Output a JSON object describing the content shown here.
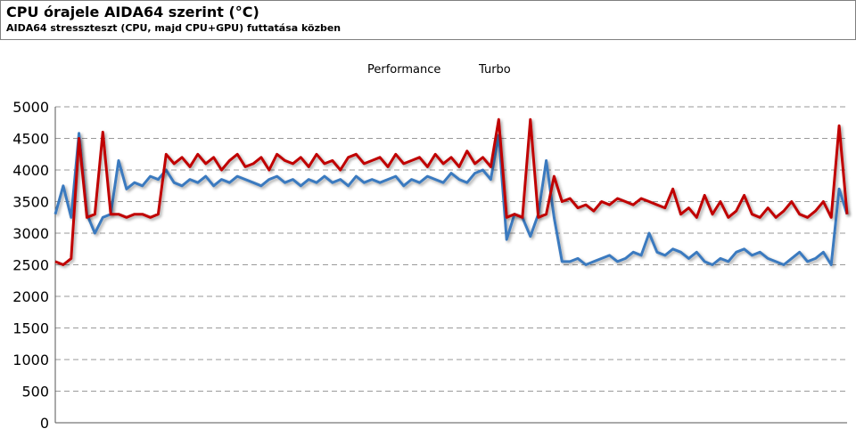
{
  "chart_data": {
    "type": "line",
    "title": "CPU órajele AIDA64 szerint (°C)",
    "subtitle": "AIDA64 stresszteszt (CPU, majd CPU+GPU) futtatása közben",
    "xlabel": "",
    "ylabel": "",
    "ylim": [
      0,
      5000
    ],
    "yticks": [
      0,
      500,
      1000,
      1500,
      2000,
      2500,
      3000,
      3500,
      4000,
      4500,
      5000
    ],
    "grid": "horizontal-dashed",
    "legend": "top-center",
    "x": [
      0,
      1,
      2,
      3,
      4,
      5,
      6,
      7,
      8,
      9,
      10,
      11,
      12,
      13,
      14,
      15,
      16,
      17,
      18,
      19,
      20,
      21,
      22,
      23,
      24,
      25,
      26,
      27,
      28,
      29,
      30,
      31,
      32,
      33,
      34,
      35,
      36,
      37,
      38,
      39,
      40,
      41,
      42,
      43,
      44,
      45,
      46,
      47,
      48,
      49,
      50,
      51,
      52,
      53,
      54,
      55,
      56,
      57,
      58,
      59,
      60,
      61,
      62,
      63,
      64,
      65,
      66,
      67,
      68,
      69,
      70,
      71,
      72,
      73,
      74,
      75,
      76,
      77,
      78,
      79,
      80,
      81,
      82,
      83,
      84,
      85,
      86,
      87,
      88,
      89,
      90,
      91,
      92,
      93,
      94,
      95,
      96,
      97,
      98,
      99,
      100
    ],
    "series": [
      {
        "name": "Performance",
        "color": "#3a7abf",
        "values": [
          3300,
          3750,
          3250,
          4580,
          3300,
          3000,
          3250,
          3300,
          4150,
          3700,
          3800,
          3750,
          3900,
          3850,
          4000,
          3800,
          3750,
          3850,
          3800,
          3900,
          3750,
          3850,
          3800,
          3900,
          3850,
          3800,
          3750,
          3850,
          3900,
          3800,
          3850,
          3750,
          3850,
          3800,
          3900,
          3800,
          3850,
          3750,
          3900,
          3800,
          3850,
          3800,
          3850,
          3900,
          3750,
          3850,
          3800,
          3900,
          3850,
          3800,
          3950,
          3850,
          3800,
          3950,
          4000,
          3850,
          4550,
          2900,
          3300,
          3250,
          2950,
          3300,
          4150,
          3250,
          2550,
          2550,
          2600,
          2500,
          2550,
          2600,
          2650,
          2550,
          2600,
          2700,
          2650,
          3000,
          2700,
          2650,
          2750,
          2700,
          2600,
          2700,
          2550,
          2500,
          2600,
          2550,
          2700,
          2750,
          2650,
          2700,
          2600,
          2550,
          2500,
          2600,
          2700,
          2550,
          2600,
          2700,
          2500,
          3700,
          3300
        ]
      },
      {
        "name": "Turbo",
        "color": "#c00000",
        "values": [
          2550,
          2500,
          2600,
          4500,
          3250,
          3300,
          4600,
          3300,
          3300,
          3250,
          3300,
          3300,
          3250,
          3300,
          4250,
          4100,
          4200,
          4050,
          4250,
          4100,
          4200,
          4000,
          4150,
          4250,
          4050,
          4100,
          4200,
          4000,
          4250,
          4150,
          4100,
          4200,
          4050,
          4250,
          4100,
          4150,
          4000,
          4200,
          4250,
          4100,
          4150,
          4200,
          4050,
          4250,
          4100,
          4150,
          4200,
          4050,
          4250,
          4100,
          4200,
          4050,
          4300,
          4100,
          4200,
          4050,
          4800,
          3250,
          3300,
          3250,
          4800,
          3250,
          3300,
          3900,
          3500,
          3550,
          3400,
          3450,
          3350,
          3500,
          3450,
          3550,
          3500,
          3450,
          3550,
          3500,
          3450,
          3400,
          3700,
          3300,
          3400,
          3250,
          3600,
          3300,
          3500,
          3250,
          3350,
          3600,
          3300,
          3250,
          3400,
          3250,
          3350,
          3500,
          3300,
          3250,
          3350,
          3500,
          3250,
          4700,
          3300
        ]
      }
    ]
  }
}
